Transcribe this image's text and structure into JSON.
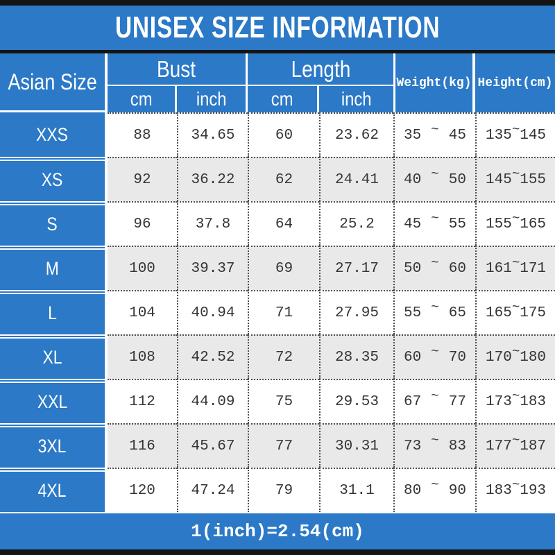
{
  "colors": {
    "accent_blue": "#2b79c7",
    "row_alt_gray": "#e9e9e9",
    "number_text": "#353535",
    "border_black": "#141414",
    "header_text": "#ffffff"
  },
  "chart_data": {
    "type": "table",
    "title": "UNISEX SIZE INFORMATION",
    "note": "1(inch)=2.54(cm)",
    "tilde": "~",
    "header": {
      "size_col": "Asian Size",
      "bust_group": "Bust",
      "length_group": "Length",
      "sub_cm": "cm",
      "sub_inch": "inch",
      "weight_col": "Weight(kg)",
      "height_col": "Height(cm)"
    },
    "columns": [
      "Asian Size",
      "Bust cm",
      "Bust inch",
      "Length cm",
      "Length inch",
      "Weight(kg)",
      "Height(cm)"
    ],
    "rows": [
      {
        "size": "XXS",
        "bust_cm": "88",
        "bust_inch": "34.65",
        "length_cm": "60",
        "length_inch": "23.62",
        "weight_min": "35",
        "weight_max": "45",
        "height_min": "135",
        "height_max": "145"
      },
      {
        "size": "XS",
        "bust_cm": "92",
        "bust_inch": "36.22",
        "length_cm": "62",
        "length_inch": "24.41",
        "weight_min": "40",
        "weight_max": "50",
        "height_min": "145",
        "height_max": "155"
      },
      {
        "size": "S",
        "bust_cm": "96",
        "bust_inch": "37.8",
        "length_cm": "64",
        "length_inch": "25.2",
        "weight_min": "45",
        "weight_max": "55",
        "height_min": "155",
        "height_max": "165"
      },
      {
        "size": "M",
        "bust_cm": "100",
        "bust_inch": "39.37",
        "length_cm": "69",
        "length_inch": "27.17",
        "weight_min": "50",
        "weight_max": "60",
        "height_min": "161",
        "height_max": "171"
      },
      {
        "size": "L",
        "bust_cm": "104",
        "bust_inch": "40.94",
        "length_cm": "71",
        "length_inch": "27.95",
        "weight_min": "55",
        "weight_max": "65",
        "height_min": "165",
        "height_max": "175"
      },
      {
        "size": "XL",
        "bust_cm": "108",
        "bust_inch": "42.52",
        "length_cm": "72",
        "length_inch": "28.35",
        "weight_min": "60",
        "weight_max": "70",
        "height_min": "170",
        "height_max": "180"
      },
      {
        "size": "XXL",
        "bust_cm": "112",
        "bust_inch": "44.09",
        "length_cm": "75",
        "length_inch": "29.53",
        "weight_min": "67",
        "weight_max": "77",
        "height_min": "173",
        "height_max": "183"
      },
      {
        "size": "3XL",
        "bust_cm": "116",
        "bust_inch": "45.67",
        "length_cm": "77",
        "length_inch": "30.31",
        "weight_min": "73",
        "weight_max": "83",
        "height_min": "177",
        "height_max": "187"
      },
      {
        "size": "4XL",
        "bust_cm": "120",
        "bust_inch": "47.24",
        "length_cm": "79",
        "length_inch": "31.1",
        "weight_min": "80",
        "weight_max": "90",
        "height_min": "183",
        "height_max": "193"
      }
    ]
  }
}
